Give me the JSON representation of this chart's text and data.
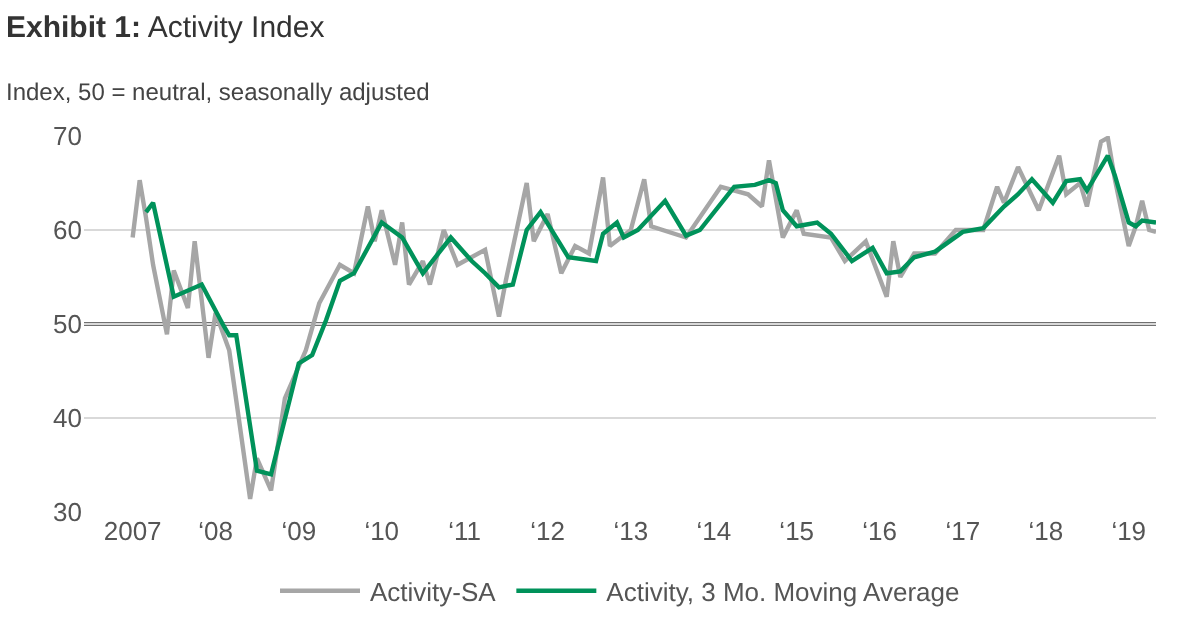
{
  "chart_data": {
    "type": "line",
    "title": "Exhibit 1: Activity Index",
    "subtitle": "Index, 50 = neutral, seasonally adjusted",
    "xlim": [
      "2006-06",
      "2019-05"
    ],
    "xticks": [
      {
        "value": "2007",
        "label": "2007"
      },
      {
        "value": "2008",
        "label": "‘08"
      },
      {
        "value": "2009",
        "label": "‘09"
      },
      {
        "value": "2010",
        "label": "‘10"
      },
      {
        "value": "2011",
        "label": "‘11"
      },
      {
        "value": "2012",
        "label": "‘12"
      },
      {
        "value": "2013",
        "label": "‘13"
      },
      {
        "value": "2014",
        "label": "‘14"
      },
      {
        "value": "2015",
        "label": "‘15"
      },
      {
        "value": "2016",
        "label": "‘16"
      },
      {
        "value": "2017",
        "label": "‘17"
      },
      {
        "value": "2018",
        "label": "‘18"
      },
      {
        "value": "2019",
        "label": "‘19"
      }
    ],
    "ylim": [
      30,
      70
    ],
    "yticks": [
      30,
      40,
      50,
      60,
      70
    ],
    "grid": "y",
    "legend": "bottom",
    "line_style": "solid",
    "marker": "none",
    "ref_lines": [
      {
        "axis": "y",
        "value": 50,
        "color": "#404040"
      }
    ],
    "series": [
      {
        "name": "Activity-SA",
        "color": "#a6a6a6",
        "x": [
          "2007-01",
          "2007-02",
          "2007-03",
          "2007-04",
          "2007-06",
          "2007-07",
          "2007-09",
          "2007-10",
          "2007-12",
          "2008-01",
          "2008-03",
          "2008-06",
          "2008-07",
          "2008-09",
          "2008-11",
          "2009-02",
          "2009-04",
          "2009-07",
          "2009-09",
          "2009-11",
          "2009-12",
          "2010-01",
          "2010-03",
          "2010-04",
          "2010-05",
          "2010-07",
          "2010-08",
          "2010-10",
          "2010-12",
          "2011-04",
          "2011-06",
          "2011-07",
          "2011-10",
          "2011-11",
          "2012-01",
          "2012-03",
          "2012-05",
          "2012-07",
          "2012-09",
          "2012-10",
          "2013-01",
          "2013-03",
          "2013-04",
          "2013-09",
          "2014-02",
          "2014-06",
          "2014-08",
          "2014-09",
          "2014-11",
          "2015-01",
          "2015-02",
          "2015-06",
          "2015-08",
          "2015-11",
          "2016-02",
          "2016-03",
          "2016-04",
          "2016-06",
          "2016-09",
          "2016-12",
          "2017-04",
          "2017-06",
          "2017-07",
          "2017-09",
          "2017-12",
          "2018-03",
          "2018-04",
          "2018-06",
          "2018-07",
          "2018-09",
          "2018-10",
          "2018-11",
          "2019-01",
          "2019-02",
          "2019-03",
          "2019-04",
          "2019-05"
        ],
        "values": [
          59.2,
          65.3,
          61.3,
          56.3,
          48.9,
          55.7,
          51.7,
          58.8,
          46.4,
          51.2,
          47.2,
          31.4,
          35.7,
          32.3,
          42.1,
          47.2,
          52.2,
          56.3,
          55.4,
          62.5,
          58.8,
          62.1,
          56.3,
          60.8,
          54.2,
          56.7,
          54.2,
          60,
          56.3,
          57.9,
          50.8,
          54.6,
          65,
          58.8,
          61.7,
          55.4,
          58.3,
          57.5,
          65.6,
          58.3,
          60,
          65.4,
          60.4,
          59.2,
          64.6,
          63.8,
          62.5,
          67.4,
          59.2,
          62.1,
          59.6,
          59.2,
          56.7,
          58.8,
          52.9,
          58.8,
          55,
          57.5,
          57.5,
          60,
          60,
          64.6,
          62.9,
          66.7,
          62.1,
          67.9,
          63.8,
          65,
          62.5,
          69.4,
          69.8,
          65.4,
          58.3,
          60.4,
          63.1,
          60,
          59.8
        ]
      },
      {
        "name": "Activity, 3 Mo. Moving Average",
        "color": "#00925a",
        "x": [
          "2007-03",
          "2007-04",
          "2007-07",
          "2007-11",
          "2008-02",
          "2008-03",
          "2008-04",
          "2008-07",
          "2008-09",
          "2009-01",
          "2009-03",
          "2009-05",
          "2009-07",
          "2009-09",
          "2010-01",
          "2010-04",
          "2010-07",
          "2010-11",
          "2011-02",
          "2011-04",
          "2011-06",
          "2011-08",
          "2011-10",
          "2011-12",
          "2012-04",
          "2012-08",
          "2012-09",
          "2012-11",
          "2012-12",
          "2013-02",
          "2013-06",
          "2013-09",
          "2013-11",
          "2014-04",
          "2014-07",
          "2014-09",
          "2014-10",
          "2014-11",
          "2015-01",
          "2015-04",
          "2015-06",
          "2015-09",
          "2015-12",
          "2016-02",
          "2016-04",
          "2016-06",
          "2016-09",
          "2017-01",
          "2017-04",
          "2017-07",
          "2017-09",
          "2017-11",
          "2018-02",
          "2018-04",
          "2018-06",
          "2018-07",
          "2018-10",
          "2018-11",
          "2019-01",
          "2019-02",
          "2019-03",
          "2019-05"
        ],
        "values": [
          61.9,
          62.9,
          52.9,
          54.2,
          50,
          48.8,
          48.8,
          34.4,
          34,
          45.8,
          46.7,
          50.4,
          54.6,
          55.4,
          60.8,
          59.2,
          55.4,
          59.2,
          56.7,
          55.4,
          53.9,
          54.2,
          60,
          61.9,
          57.1,
          56.7,
          59.6,
          60.8,
          59.2,
          60,
          63.1,
          59.4,
          60,
          64.6,
          64.8,
          65.3,
          65,
          62.1,
          60.4,
          60.8,
          59.6,
          56.7,
          58.1,
          55.4,
          55.6,
          57.1,
          57.7,
          59.8,
          60.2,
          62.5,
          63.8,
          65.4,
          62.9,
          65.2,
          65.4,
          64.2,
          67.9,
          65.8,
          60.8,
          60.4,
          61,
          60.8
        ]
      }
    ]
  }
}
